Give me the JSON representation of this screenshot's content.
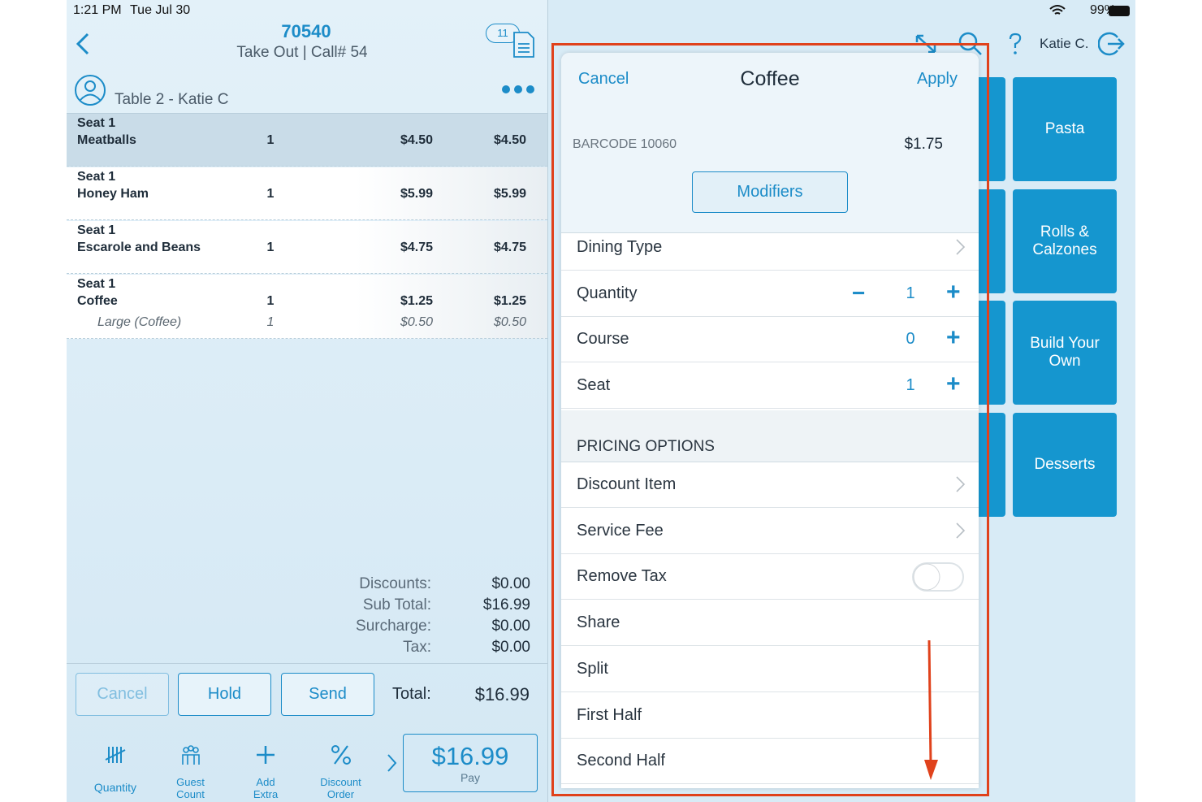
{
  "status": {
    "time": "1:21 PM",
    "date": "Tue Jul 30",
    "battery": "99%"
  },
  "order": {
    "number": "70540",
    "subtitle": "Take Out | Call# 54",
    "badge": "11",
    "table": "Table 2 - Katie C"
  },
  "items": [
    {
      "seat": "Seat 1",
      "name": "Meatballs",
      "qty": "1",
      "price": "$4.50",
      "total": "$4.50"
    },
    {
      "seat": "Seat 1",
      "name": "Honey Ham",
      "qty": "1",
      "price": "$5.99",
      "total": "$5.99"
    },
    {
      "seat": "Seat 1",
      "name": "Escarole and Beans",
      "qty": "1",
      "price": "$4.75",
      "total": "$4.75"
    },
    {
      "seat": "Seat 1",
      "name": "Coffee",
      "qty": "1",
      "price": "$1.25",
      "total": "$1.25",
      "modifier": {
        "name": "Large (Coffee)",
        "qty": "1",
        "price": "$0.50",
        "total": "$0.50"
      }
    }
  ],
  "totals": [
    {
      "label": "Discounts:",
      "value": "$0.00"
    },
    {
      "label": "Sub Total:",
      "value": "$16.99"
    },
    {
      "label": "Surcharge:",
      "value": "$0.00"
    },
    {
      "label": "Tax:",
      "value": "$0.00"
    }
  ],
  "actions": {
    "cancel": "Cancel",
    "hold": "Hold",
    "send": "Send",
    "total_label": "Total:",
    "total_value": "$16.99"
  },
  "toolbar": [
    "Quantity",
    "Guest Count",
    "Add Extra Item",
    "Discount Order"
  ],
  "pay": {
    "amount": "$16.99",
    "label": "Pay"
  },
  "user": "Katie C.",
  "categories": [
    "Pasta",
    "Rolls & Calzones",
    "Build Your Own",
    "Desserts"
  ],
  "popup": {
    "cancel": "Cancel",
    "title": "Coffee",
    "apply": "Apply",
    "barcode": "BARCODE 10060",
    "price": "$1.75",
    "modifiers": "Modifiers",
    "rows": [
      {
        "label": "Dining Type",
        "control": "chevron"
      },
      {
        "label": "Quantity",
        "control": "stepper",
        "minus": "−",
        "value": "1",
        "plus": "+"
      },
      {
        "label": "Course",
        "control": "stepper",
        "value": "0",
        "plus": "+"
      },
      {
        "label": "Seat",
        "control": "stepper",
        "value": "1",
        "plus": "+"
      }
    ],
    "section": "PRICING OPTIONS",
    "pricing_rows": [
      {
        "label": "Discount Item",
        "control": "chevron"
      },
      {
        "label": "Service Fee",
        "control": "chevron"
      },
      {
        "label": "Remove Tax",
        "control": "toggle"
      },
      {
        "label": "Share"
      },
      {
        "label": "Split"
      },
      {
        "label": "First Half"
      },
      {
        "label": "Second Half"
      }
    ]
  }
}
